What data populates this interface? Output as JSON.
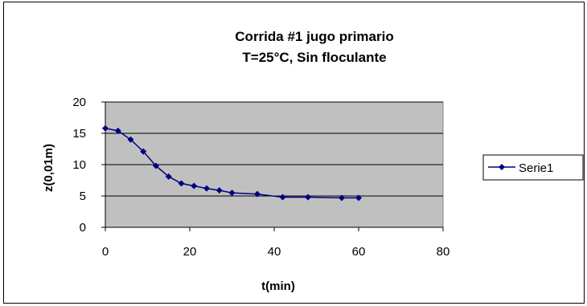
{
  "chart_data": {
    "type": "line",
    "title": "Corrida #1 jugo primario",
    "subtitle": "T=25°C, Sin floculante",
    "xlabel": "t(min)",
    "ylabel": "z(0,01m)",
    "xlim": [
      0,
      80
    ],
    "ylim": [
      0,
      20
    ],
    "x_ticks": [
      0,
      20,
      40,
      60,
      80
    ],
    "y_ticks": [
      0,
      5,
      10,
      15,
      20
    ],
    "grid": "horizontal major gridlines",
    "legend_position": "right",
    "series": [
      {
        "name": "Serie1",
        "color": "#000080",
        "x": [
          0,
          3,
          6,
          9,
          12,
          15,
          18,
          21,
          24,
          27,
          30,
          36,
          42,
          48,
          56,
          60
        ],
        "y": [
          15.8,
          15.4,
          14.0,
          12.1,
          9.8,
          8.1,
          7.0,
          6.6,
          6.2,
          5.9,
          5.5,
          5.3,
          4.8,
          4.8,
          4.7,
          4.7
        ]
      }
    ],
    "colors": {
      "plot_area": "#c0c0c0",
      "gridline": "#000000",
      "series_line": "#000080"
    }
  }
}
